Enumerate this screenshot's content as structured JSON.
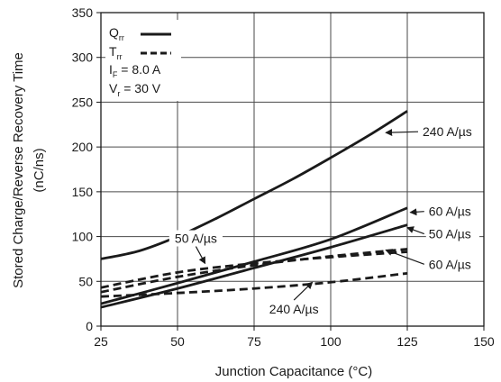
{
  "chart_data": {
    "type": "line",
    "title": "",
    "xlabel": "Junction Capacitance (°C)",
    "ylabel_line1": "Stored Charge/Reverse Recovery Time",
    "ylabel_line2": "(nC/ns)",
    "xlim": [
      25,
      150
    ],
    "ylim": [
      0,
      350
    ],
    "xticks": [
      25,
      50,
      75,
      100,
      125,
      150
    ],
    "yticks": [
      0,
      50,
      100,
      150,
      200,
      250,
      300,
      350
    ],
    "grid": true,
    "legend": {
      "placement": "top-left",
      "qrr_main": "Q",
      "qrr_sub": "rr",
      "trr_main": "T",
      "trr_sub": "rr",
      "if_main": "I",
      "if_sub": "F",
      "if_rest": " = 8.0 A",
      "vr_main": "V",
      "vr_sub": "r",
      "vr_rest": " = 30 V"
    },
    "series": [
      {
        "name": "Qrr 240 A/µs",
        "style": "solid",
        "x": [
          25,
          37.5,
          50,
          62.5,
          75,
          87.5,
          100,
          112.5,
          125
        ],
        "y": [
          75,
          84,
          100,
          120,
          142,
          164,
          188,
          213,
          240
        ]
      },
      {
        "name": "Qrr 60 A/µs",
        "style": "solid",
        "x": [
          25,
          50,
          75,
          100,
          125
        ],
        "y": [
          25,
          48,
          72,
          97,
          132
        ]
      },
      {
        "name": "Qrr 50 A/µs",
        "style": "solid",
        "x": [
          25,
          50,
          75,
          100,
          125
        ],
        "y": [
          21,
          42,
          65,
          88,
          113
        ]
      },
      {
        "name": "Trr 50 A/µs",
        "style": "dashed",
        "x": [
          25,
          50,
          75,
          100,
          125
        ],
        "y": [
          43,
          60,
          70,
          77,
          83
        ]
      },
      {
        "name": "Trr 60 A/µs",
        "style": "dashed",
        "x": [
          25,
          50,
          75,
          100,
          125
        ],
        "y": [
          38,
          55,
          68,
          78,
          86
        ]
      },
      {
        "name": "Trr 240 A/µs",
        "style": "dashed",
        "x": [
          25,
          50,
          75,
          100,
          125
        ],
        "y": [
          33,
          37,
          42,
          49,
          59
        ]
      }
    ],
    "annotations": [
      {
        "text": "240 A/µs",
        "target": [
          118,
          216
        ],
        "label_at": [
          130,
          212
        ],
        "anchor": "start"
      },
      {
        "text": "60 A/µs",
        "target": [
          126,
          127
        ],
        "label_at": [
          132,
          123
        ],
        "anchor": "start"
      },
      {
        "text": "50 A/µs",
        "target": [
          125,
          110
        ],
        "label_at": [
          132,
          98
        ],
        "anchor": "start"
      },
      {
        "text": "60 A/µs",
        "target": [
          118,
          85
        ],
        "label_at": [
          132,
          64
        ],
        "anchor": "start"
      },
      {
        "text": "50 A/µs",
        "target": [
          59,
          70
        ],
        "label_at": [
          56,
          93
        ],
        "anchor": "middle"
      },
      {
        "text": "240 A/µs",
        "target": [
          94,
          49
        ],
        "label_at": [
          88,
          14
        ],
        "anchor": "middle"
      }
    ]
  }
}
